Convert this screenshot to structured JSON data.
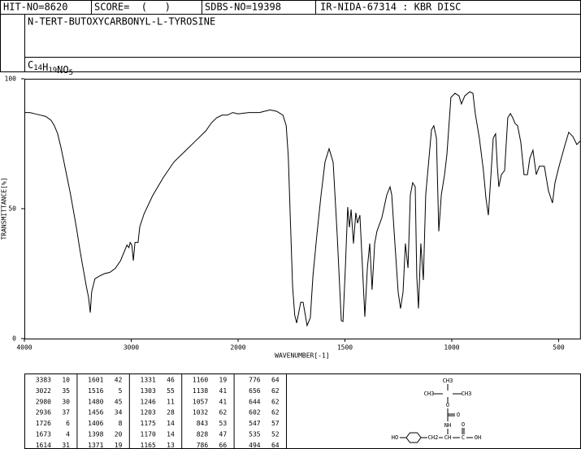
{
  "header": {
    "hit_no": "HIT-NO=8620",
    "score": "SCORE=  (   )",
    "sdbs_no": "SDBS-NO=19398",
    "method": "IR-NIDA-67314 : KBR DISC",
    "name": "N-TERT-BUTOXYCARBONYL-L-TYROSINE",
    "formula": "C14H19NO5"
  },
  "chart_data": {
    "type": "line",
    "x_label": "WAVENUMBER[-1]",
    "y_label": "TRANSMITTANCE[%]",
    "xlim": [
      4000,
      400
    ],
    "ylim": [
      0,
      100
    ],
    "xticks": [
      4000,
      3000,
      2000,
      1500,
      1000,
      500
    ],
    "yticks": [
      0,
      50,
      100
    ],
    "x": [
      4000,
      3950,
      3900,
      3850,
      3800,
      3750,
      3720,
      3690,
      3660,
      3630,
      3600,
      3570,
      3540,
      3510,
      3480,
      3450,
      3420,
      3400,
      3383,
      3370,
      3340,
      3300,
      3250,
      3200,
      3150,
      3100,
      3060,
      3040,
      3022,
      3010,
      2995,
      2980,
      2965,
      2950,
      2936,
      2920,
      2880,
      2800,
      2700,
      2600,
      2500,
      2400,
      2300,
      2250,
      2200,
      2150,
      2100,
      2050,
      2000,
      1950,
      1900,
      1850,
      1820,
      1790,
      1775,
      1765,
      1755,
      1745,
      1735,
      1726,
      1707,
      1696,
      1677,
      1662,
      1650,
      1631,
      1612,
      1593,
      1574,
      1555,
      1536,
      1517,
      1509,
      1498,
      1487,
      1479,
      1471,
      1460,
      1449,
      1441,
      1430,
      1418,
      1407,
      1395,
      1384,
      1373,
      1361,
      1350,
      1327,
      1304,
      1289,
      1281,
      1266,
      1251,
      1240,
      1228,
      1217,
      1205,
      1194,
      1183,
      1171,
      1164,
      1156,
      1145,
      1133,
      1122,
      1107,
      1095,
      1084,
      1072,
      1061,
      1049,
      1034,
      1023,
      1004,
      985,
      966,
      955,
      939,
      916,
      901,
      890,
      871,
      852,
      840,
      829,
      818,
      806,
      795,
      787,
      780,
      768,
      753,
      738,
      726,
      715,
      704,
      692,
      677,
      662,
      646,
      635,
      620,
      605,
      590,
      567,
      548,
      529,
      517,
      498,
      472,
      453,
      434,
      415,
      400
    ],
    "series": [
      {
        "color": "#000000",
        "values": [
          87,
          87,
          86.5,
          86,
          85.5,
          84,
          82,
          79,
          74,
          68,
          62,
          56,
          49,
          42,
          34,
          27,
          20,
          16,
          10,
          18,
          23,
          24,
          25,
          25.5,
          27,
          30,
          34,
          36,
          35,
          37,
          36,
          30,
          37,
          37,
          37,
          43,
          48,
          55,
          62,
          68,
          72,
          76,
          80,
          83,
          85,
          86,
          86,
          87,
          86.5,
          87,
          87,
          88,
          87.5,
          86,
          82,
          70,
          45,
          20,
          9,
          6,
          14,
          14,
          5,
          8,
          24,
          40,
          55,
          68,
          73.1,
          67.8,
          39.7,
          6.9,
          6.6,
          27.2,
          50.6,
          42.8,
          49.7,
          36.6,
          48.4,
          44.4,
          47.5,
          27.2,
          8.4,
          27.2,
          36.6,
          18.8,
          36.6,
          41.3,
          46.6,
          55.3,
          58.4,
          55.3,
          36.6,
          17.8,
          11.6,
          17.8,
          36.6,
          27.2,
          55.3,
          60,
          58.4,
          24,
          11.6,
          36.6,
          22.5,
          55.3,
          69.4,
          80.3,
          81.9,
          77.2,
          41.3,
          55.3,
          63.1,
          70.9,
          92.8,
          94.4,
          93.4,
          90.3,
          93.4,
          95,
          94.4,
          86.6,
          77.2,
          64.7,
          53.8,
          47.5,
          61.6,
          77.2,
          78.8,
          66.3,
          58.4,
          63.1,
          64.7,
          85,
          86.6,
          85,
          82.8,
          81.9,
          75.6,
          63.1,
          63.1,
          69.4,
          72.5,
          63.1,
          66.3,
          66.3,
          56.9,
          52.2,
          60,
          66.3,
          74.1,
          79.4,
          77.8,
          74.7,
          76
        ]
      }
    ]
  },
  "peaks": [
    [
      3383,
      10
    ],
    [
      3022,
      35
    ],
    [
      2980,
      30
    ],
    [
      2936,
      37
    ],
    [
      1726,
      6
    ],
    [
      1673,
      4
    ],
    [
      1614,
      31
    ],
    [
      1601,
      42
    ],
    [
      1516,
      5
    ],
    [
      1480,
      45
    ],
    [
      1456,
      34
    ],
    [
      1406,
      8
    ],
    [
      1398,
      20
    ],
    [
      1371,
      19
    ],
    [
      1331,
      46
    ],
    [
      1303,
      55
    ],
    [
      1246,
      11
    ],
    [
      1203,
      28
    ],
    [
      1175,
      14
    ],
    [
      1170,
      14
    ],
    [
      1165,
      13
    ],
    [
      1160,
      19
    ],
    [
      1138,
      41
    ],
    [
      1057,
      41
    ],
    [
      1032,
      62
    ],
    [
      843,
      53
    ],
    [
      828,
      47
    ],
    [
      786,
      66
    ],
    [
      776,
      64
    ],
    [
      656,
      62
    ],
    [
      644,
      62
    ],
    [
      602,
      62
    ],
    [
      547,
      57
    ],
    [
      535,
      52
    ],
    [
      494,
      64
    ]
  ],
  "structure": {
    "labels": [
      "CH3",
      "CH3",
      "CH3",
      "O",
      "O",
      "NH",
      "HO",
      "CH2",
      "CH",
      "C",
      "O",
      "OH"
    ]
  }
}
